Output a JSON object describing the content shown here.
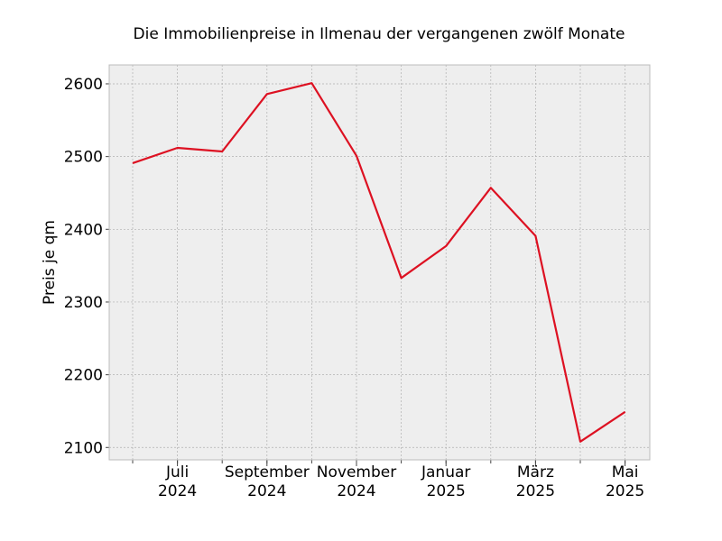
{
  "chart_data": {
    "type": "line",
    "title": "Die Immobilienpreise in Ilmenau der vergangenen zwölf Monate",
    "xlabel": "",
    "ylabel": "Preis je qm",
    "x": [
      "2024-06",
      "2024-07",
      "2024-08",
      "2024-09",
      "2024-10",
      "2024-11",
      "2024-12",
      "2025-01",
      "2025-02",
      "2025-03",
      "2025-04",
      "2025-05"
    ],
    "series": [
      {
        "values": [
          2491,
          2512,
          2507,
          2586,
          2601,
          2501,
          2333,
          2377,
          2457,
          2391,
          2108,
          2149
        ]
      }
    ],
    "ylim": [
      2083,
      2626
    ],
    "y_ticks": [
      2100,
      2200,
      2300,
      2400,
      2500,
      2600
    ],
    "x_tick_labels": [
      {
        "at": "2024-07",
        "month": "Juli",
        "year": "2024"
      },
      {
        "at": "2024-09",
        "month": "September",
        "year": "2024"
      },
      {
        "at": "2024-11",
        "month": "November",
        "year": "2024"
      },
      {
        "at": "2025-01",
        "month": "Januar",
        "year": "2025"
      },
      {
        "at": "2025-03",
        "month": "März",
        "year": "2025"
      },
      {
        "at": "2025-05",
        "month": "Mai",
        "year": "2025"
      }
    ],
    "grid": true,
    "colors": {
      "line": "#dd1122",
      "plot_bg": "#eeeeee",
      "grid": "#b0b0b0"
    }
  }
}
